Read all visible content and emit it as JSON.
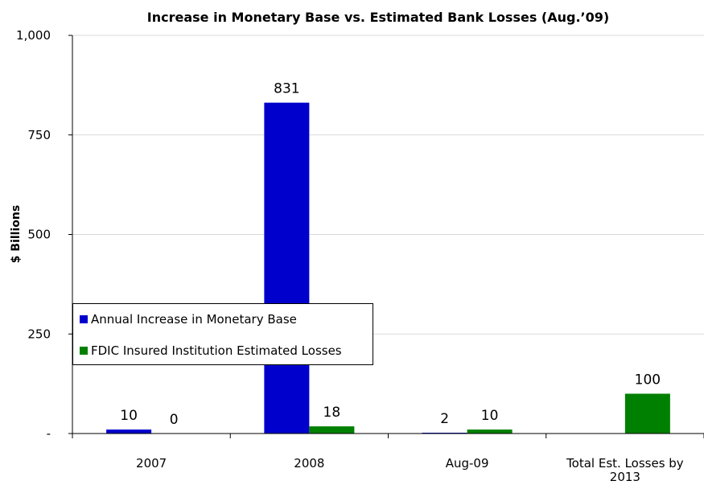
{
  "chart_data": {
    "type": "bar",
    "title": "Increase in Monetary Base vs. Estimated Bank Losses (Aug.’09)",
    "xlabel": "",
    "ylabel": "$ Billions",
    "categories": [
      "2007",
      "2008",
      "Aug-09",
      "Total Est. Losses by 2013"
    ],
    "category_lines": [
      [
        "2007"
      ],
      [
        "2008"
      ],
      [
        "Aug-09"
      ],
      [
        "Total Est. Losses by",
        "2013"
      ]
    ],
    "ylim": [
      0,
      1000
    ],
    "yticks": [
      0,
      250,
      500,
      750,
      1000
    ],
    "ytick_labels": [
      "-",
      "250",
      "500",
      "750",
      "1,000"
    ],
    "grid": true,
    "legend_position": "left-middle",
    "series": [
      {
        "name": "Annual Increase in Monetary Base",
        "color": "#0000cc",
        "values": [
          10,
          831,
          2,
          null
        ],
        "labels": [
          "10",
          "831",
          "2",
          ""
        ]
      },
      {
        "name": "FDIC Insured Institution Estimated Losses",
        "color": "#008000",
        "values": [
          0,
          18,
          10,
          100
        ],
        "labels": [
          "0",
          "18",
          "10",
          "100"
        ]
      }
    ]
  }
}
